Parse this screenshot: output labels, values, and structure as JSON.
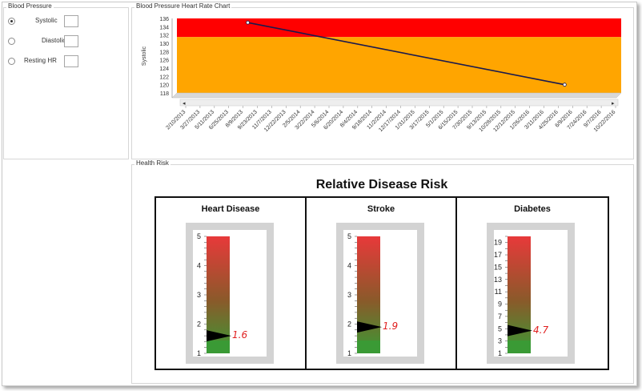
{
  "blood_pressure": {
    "title": "Blood Pressure",
    "options": [
      {
        "label": "Systolic",
        "checked": true,
        "value": ""
      },
      {
        "label": "Diastolic",
        "checked": false,
        "value": ""
      },
      {
        "label": "Resting HR",
        "checked": false,
        "value": ""
      }
    ]
  },
  "chart_panel": {
    "title": "Blood Pressure Heart Rate Chart",
    "colors": {
      "high": "#ff0000",
      "normal": "#ffa500",
      "line": "#1a1a4e"
    }
  },
  "chart_data": {
    "type": "line",
    "ylabel": "Systolic",
    "ylim": [
      118,
      136
    ],
    "yticks": [
      136,
      134,
      132,
      130,
      128,
      126,
      124,
      122,
      120,
      118
    ],
    "x_tick_labels": [
      "2/10/2013",
      "3/27/2013",
      "5/11/2013",
      "6/25/2013",
      "8/9/2013",
      "9/23/2013",
      "11/7/2013",
      "12/22/2013",
      "2/5/2014",
      "3/22/2014",
      "5/6/2014",
      "6/20/2014",
      "8/4/2014",
      "9/18/2014",
      "11/2/2014",
      "12/17/2014",
      "1/31/2015",
      "3/17/2015",
      "5/1/2015",
      "6/15/2015",
      "7/30/2015",
      "9/13/2015",
      "10/28/2015",
      "12/12/2015",
      "1/26/2016",
      "3/11/2016",
      "4/25/2016",
      "6/9/2016",
      "7/24/2016",
      "9/7/2016",
      "10/22/2016"
    ],
    "series": [
      {
        "points": [
          {
            "x": "8/24/2013",
            "y": 135
          },
          {
            "x": "5/15/2016",
            "y": 120
          }
        ]
      }
    ],
    "bands": [
      {
        "from": 131.5,
        "to": 136,
        "color": "#ff0000"
      },
      {
        "from": 118,
        "to": 131.5,
        "color": "#ffa500"
      }
    ]
  },
  "health_risk": {
    "title": "Health Risk",
    "heading": "Relative Disease Risk",
    "gauges": [
      {
        "name": "Heart Disease",
        "value": 1.6,
        "display": "1.6",
        "min": 1,
        "max": 5,
        "ticks": [
          "5",
          "4",
          "3",
          "2",
          "1"
        ]
      },
      {
        "name": "Stroke",
        "value": 1.9,
        "display": "1.9",
        "min": 1,
        "max": 5,
        "ticks": [
          "5",
          "4",
          "3",
          "2",
          "1"
        ]
      },
      {
        "name": "Diabetes",
        "value": 4.7,
        "display": "4.7",
        "min": 1,
        "max": 20,
        "ticks": [
          "19",
          "17",
          "15",
          "13",
          "11",
          "9",
          "7",
          "5",
          "3",
          "1"
        ]
      }
    ]
  }
}
